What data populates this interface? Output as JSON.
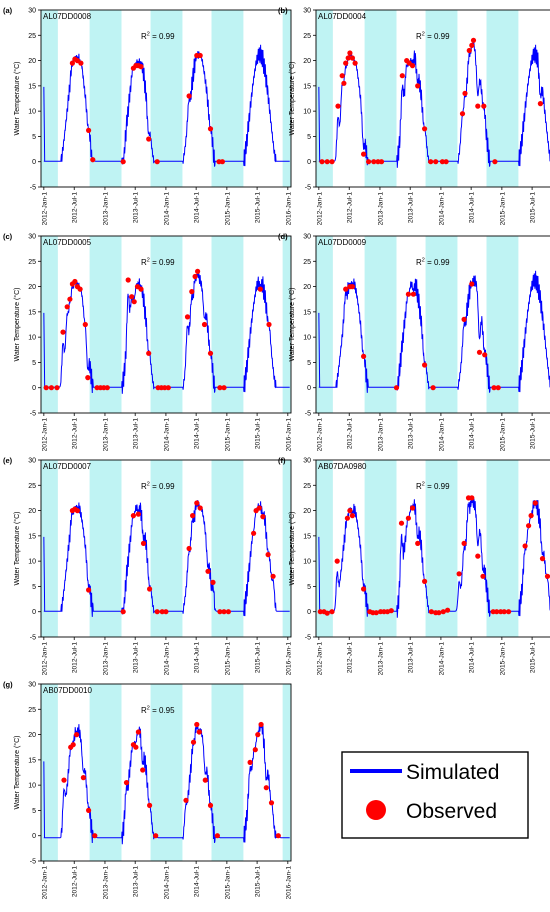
{
  "figure": {
    "ylabel": "Water Temperature (°C)",
    "r2_prefix": "R",
    "r2_sup": "2",
    "legend": {
      "simulated": "Simulated",
      "observed": "Observed"
    },
    "colors": {
      "simulated": "#0000ff",
      "observed": "#ff0000",
      "shade": "#bff3f3"
    }
  },
  "chart_data": [
    {
      "type": "line",
      "panel": "(a)",
      "station": "AL07DD0008",
      "r2": "= 0.99",
      "ylim": [
        -5,
        30
      ],
      "yticks": [
        -5,
        0,
        5,
        10,
        15,
        20,
        25,
        30
      ],
      "xlim": [
        "2011-12-15",
        "2016-01-20"
      ],
      "xticks": [
        "2012-Jan-1",
        "2012-Jul-1",
        "2013-Jan-1",
        "2013-Jul-1",
        "2014-Jan-1",
        "2014-Jul-1",
        "2015-Jan-1",
        "2015-Jul-1",
        "2016-Jan-1"
      ],
      "observed": [
        [
          "2012-06-20",
          19.5
        ],
        [
          "2012-07-05",
          20.3
        ],
        [
          "2012-07-20",
          20
        ],
        [
          "2012-08-10",
          19.5
        ],
        [
          "2012-09-25",
          6.2
        ],
        [
          "2012-10-20",
          0.4
        ],
        [
          "2013-04-20",
          0
        ],
        [
          "2013-06-20",
          18.5
        ],
        [
          "2013-07-05",
          19
        ],
        [
          "2013-07-20",
          19
        ],
        [
          "2013-08-05",
          18.8
        ],
        [
          "2013-09-20",
          4.5
        ],
        [
          "2013-11-10",
          0
        ],
        [
          "2014-05-20",
          13
        ],
        [
          "2014-07-05",
          21
        ],
        [
          "2014-07-25",
          21
        ],
        [
          "2014-09-25",
          6.5
        ],
        [
          "2014-11-15",
          0
        ],
        [
          "2014-12-05",
          0
        ]
      ]
    },
    {
      "type": "line",
      "panel": "(b)",
      "station": "AL07DD0004",
      "r2": "= 0.99",
      "ylim": [
        -5,
        30
      ],
      "yticks": [
        -5,
        0,
        5,
        10,
        15,
        20,
        25,
        30
      ],
      "xlim": [
        "2011-12-15",
        "2016-01-20"
      ],
      "xticks": [
        "2012-Jan-1",
        "2012-Jul-1",
        "2013-Jan-1",
        "2013-Jul-1",
        "2014-Jan-1",
        "2014-Jul-1",
        "2015-Jan-1",
        "2015-Jul-1",
        "2016-Jan-1"
      ],
      "observed": [
        [
          "2012-01-20",
          0
        ],
        [
          "2012-02-20",
          0
        ],
        [
          "2012-03-20",
          0
        ],
        [
          "2012-04-25",
          11
        ],
        [
          "2012-05-20",
          17
        ],
        [
          "2012-05-30",
          15.5
        ],
        [
          "2012-06-10",
          19.5
        ],
        [
          "2012-06-25",
          20.5
        ],
        [
          "2012-07-05",
          21.5
        ],
        [
          "2012-07-20",
          20.5
        ],
        [
          "2012-08-05",
          19.5
        ],
        [
          "2012-09-25",
          1.5
        ],
        [
          "2012-10-25",
          0
        ],
        [
          "2012-11-25",
          0
        ],
        [
          "2012-12-20",
          0
        ],
        [
          "2013-01-10",
          0
        ],
        [
          "2013-05-15",
          17
        ],
        [
          "2013-06-10",
          20
        ],
        [
          "2013-06-25",
          19.5
        ],
        [
          "2013-07-15",
          19
        ],
        [
          "2013-08-15",
          15
        ],
        [
          "2013-09-25",
          6.5
        ],
        [
          "2013-11-01",
          0
        ],
        [
          "2013-12-01",
          0
        ],
        [
          "2014-01-10",
          0
        ],
        [
          "2014-02-01",
          0
        ],
        [
          "2014-05-10",
          9.5
        ],
        [
          "2014-05-25",
          13.5
        ],
        [
          "2014-06-20",
          22
        ],
        [
          "2014-07-05",
          23
        ],
        [
          "2014-07-15",
          24
        ],
        [
          "2014-08-10",
          11
        ],
        [
          "2014-09-15",
          11
        ],
        [
          "2014-11-20",
          0
        ],
        [
          "2015-08-20",
          11.5
        ]
      ]
    },
    {
      "type": "line",
      "panel": "(c)",
      "station": "AL07DD0005",
      "r2": "= 0.99",
      "ylim": [
        -5,
        30
      ],
      "yticks": [
        -5,
        0,
        5,
        10,
        15,
        20,
        25,
        30
      ],
      "xlim": [
        "2011-12-15",
        "2016-01-20"
      ],
      "xticks": [
        "2012-Jan-1",
        "2012-Jul-1",
        "2013-Jan-1",
        "2013-Jul-1",
        "2014-Jan-1",
        "2014-Jul-1",
        "2015-Jan-1",
        "2015-Jul-1",
        "2016-Jan-1"
      ],
      "observed": [
        [
          "2012-01-15",
          0
        ],
        [
          "2012-02-15",
          0
        ],
        [
          "2012-03-20",
          0
        ],
        [
          "2012-04-25",
          11
        ],
        [
          "2012-05-20",
          16
        ],
        [
          "2012-06-05",
          17.5
        ],
        [
          "2012-06-20",
          20.5
        ],
        [
          "2012-07-05",
          21
        ],
        [
          "2012-07-20",
          20
        ],
        [
          "2012-08-05",
          19.5
        ],
        [
          "2012-09-05",
          12.5
        ],
        [
          "2012-09-20",
          2
        ],
        [
          "2012-11-15",
          0
        ],
        [
          "2012-12-05",
          0
        ],
        [
          "2012-12-25",
          0
        ],
        [
          "2013-01-15",
          0
        ],
        [
          "2013-05-20",
          21.3
        ],
        [
          "2013-06-10",
          18
        ],
        [
          "2013-06-25",
          17
        ],
        [
          "2013-07-15",
          20
        ],
        [
          "2013-08-05",
          19.5
        ],
        [
          "2013-09-20",
          6.8
        ],
        [
          "2013-11-15",
          0
        ],
        [
          "2013-12-05",
          0
        ],
        [
          "2013-12-25",
          0
        ],
        [
          "2014-01-15",
          0
        ],
        [
          "2014-05-10",
          14
        ],
        [
          "2014-06-05",
          19
        ],
        [
          "2014-06-25",
          22
        ],
        [
          "2014-07-10",
          23
        ],
        [
          "2014-08-20",
          12.5
        ],
        [
          "2014-09-25",
          6.8
        ],
        [
          "2014-11-20",
          0
        ],
        [
          "2014-12-15",
          0
        ],
        [
          "2015-07-20",
          19.5
        ],
        [
          "2015-09-10",
          12.5
        ]
      ]
    },
    {
      "type": "line",
      "panel": "(d)",
      "station": "AL07DD0009",
      "r2": "= 0.99",
      "ylim": [
        -5,
        30
      ],
      "yticks": [
        -5,
        0,
        5,
        10,
        15,
        20,
        25,
        30
      ],
      "xlim": [
        "2011-12-15",
        "2016-01-20"
      ],
      "xticks": [
        "2012-Jan-1",
        "2012-Jul-1",
        "2013-Jan-1",
        "2013-Jul-1",
        "2014-Jan-1",
        "2014-Jul-1",
        "2015-Jan-1",
        "2015-Jul-1",
        "2016-Jan-1"
      ],
      "observed": [
        [
          "2012-06-10",
          19.5
        ],
        [
          "2012-07-05",
          20
        ],
        [
          "2012-07-20",
          20
        ],
        [
          "2012-09-25",
          6.2
        ],
        [
          "2013-04-10",
          0
        ],
        [
          "2013-06-20",
          18.5
        ],
        [
          "2013-07-20",
          18.5
        ],
        [
          "2013-09-25",
          4.5
        ],
        [
          "2013-11-15",
          0
        ],
        [
          "2014-05-20",
          13.5
        ],
        [
          "2014-07-05",
          20.5
        ],
        [
          "2014-08-20",
          7
        ],
        [
          "2014-09-20",
          6.5
        ],
        [
          "2014-11-15",
          0
        ],
        [
          "2014-12-10",
          0
        ]
      ]
    },
    {
      "type": "line",
      "panel": "(e)",
      "station": "AL07DD0007",
      "r2": "= 0.99",
      "ylim": [
        -5,
        30
      ],
      "yticks": [
        -5,
        0,
        5,
        10,
        15,
        20,
        25,
        30
      ],
      "xlim": [
        "2011-12-15",
        "2016-01-20"
      ],
      "xticks": [
        "2012-Jan-1",
        "2012-Jul-1",
        "2013-Jan-1",
        "2013-Jul-1",
        "2014-Jan-1",
        "2014-Jul-1",
        "2015-Jan-1",
        "2015-Jul-1",
        "2016-Jan-1"
      ],
      "observed": [
        [
          "2012-06-20",
          20
        ],
        [
          "2012-07-05",
          20.3
        ],
        [
          "2012-07-20",
          20
        ],
        [
          "2012-09-25",
          4.3
        ],
        [
          "2013-04-20",
          0
        ],
        [
          "2013-06-20",
          19
        ],
        [
          "2013-07-20",
          19.3
        ],
        [
          "2013-08-20",
          13.5
        ],
        [
          "2013-09-25",
          4.5
        ],
        [
          "2013-11-10",
          0
        ],
        [
          "2013-12-10",
          0
        ],
        [
          "2014-01-01",
          0
        ],
        [
          "2014-05-20",
          12.5
        ],
        [
          "2014-06-10",
          19
        ],
        [
          "2014-07-05",
          21.5
        ],
        [
          "2014-07-25",
          20.5
        ],
        [
          "2014-09-10",
          8
        ],
        [
          "2014-10-10",
          5.8
        ],
        [
          "2014-11-20",
          0
        ],
        [
          "2014-12-15",
          0
        ],
        [
          "2015-01-10",
          0
        ],
        [
          "2015-06-10",
          15.5
        ],
        [
          "2015-06-25",
          20
        ],
        [
          "2015-07-15",
          20.5
        ],
        [
          "2015-08-05",
          18.8
        ],
        [
          "2015-09-05",
          11.3
        ],
        [
          "2015-10-05",
          7
        ]
      ]
    },
    {
      "type": "line",
      "panel": "(f)",
      "station": "AB07DA0980",
      "r2": "= 0.99",
      "ylim": [
        -5,
        30
      ],
      "yticks": [
        -5,
        0,
        5,
        10,
        15,
        20,
        25,
        30
      ],
      "xlim": [
        "2011-12-15",
        "2016-01-20"
      ],
      "xticks": [
        "2012-Jan-1",
        "2012-Jul-1",
        "2013-Jan-1",
        "2013-Jul-1",
        "2014-Jan-1",
        "2014-Jul-1",
        "2015-Jan-1",
        "2015-Jul-1",
        "2016-Jan-1"
      ],
      "observed": [
        [
          "2012-01-10",
          0
        ],
        [
          "2012-02-01",
          0
        ],
        [
          "2012-02-20",
          -0.3
        ],
        [
          "2012-03-20",
          0
        ],
        [
          "2012-04-20",
          10
        ],
        [
          "2012-06-20",
          18.5
        ],
        [
          "2012-07-05",
          20
        ],
        [
          "2012-07-20",
          19
        ],
        [
          "2012-09-25",
          4.5
        ],
        [
          "2012-11-01",
          0
        ],
        [
          "2012-11-20",
          -0.2
        ],
        [
          "2012-12-10",
          -0.2
        ],
        [
          "2013-01-05",
          0
        ],
        [
          "2013-01-25",
          0
        ],
        [
          "2013-02-15",
          0
        ],
        [
          "2013-03-10",
          0.2
        ],
        [
          "2013-05-10",
          17.5
        ],
        [
          "2013-06-20",
          18.5
        ],
        [
          "2013-07-15",
          20.5
        ],
        [
          "2013-08-15",
          13.5
        ],
        [
          "2013-09-25",
          6
        ],
        [
          "2013-11-05",
          0
        ],
        [
          "2013-12-01",
          -0.2
        ],
        [
          "2013-12-20",
          -0.2
        ],
        [
          "2014-01-15",
          0
        ],
        [
          "2014-02-10",
          0.3
        ],
        [
          "2014-04-20",
          7.5
        ],
        [
          "2014-05-20",
          13.5
        ],
        [
          "2014-06-15",
          22.5
        ],
        [
          "2014-07-05",
          22.5
        ],
        [
          "2014-08-10",
          11
        ],
        [
          "2014-09-10",
          7
        ],
        [
          "2014-11-10",
          0
        ],
        [
          "2014-12-01",
          0
        ],
        [
          "2014-12-25",
          0
        ],
        [
          "2015-01-15",
          0
        ],
        [
          "2015-02-10",
          0
        ],
        [
          "2015-05-20",
          13
        ],
        [
          "2015-06-10",
          17
        ],
        [
          "2015-06-25",
          19
        ],
        [
          "2015-07-20",
          21.5
        ],
        [
          "2015-09-01",
          10.5
        ],
        [
          "2015-10-01",
          7
        ],
        [
          "2015-11-10",
          0
        ],
        [
          "2015-12-01",
          -0.3
        ]
      ]
    },
    {
      "type": "line",
      "panel": "(g)",
      "station": "AB07DD0010",
      "r2": "= 0.95",
      "ylim": [
        -5,
        30
      ],
      "yticks": [
        -5,
        0,
        5,
        10,
        15,
        20,
        25,
        30
      ],
      "xlim": [
        "2011-12-15",
        "2016-01-20"
      ],
      "xticks": [
        "2012-Jan-1",
        "2012-Jul-1",
        "2013-Jan-1",
        "2013-Jul-1",
        "2014-Jan-1",
        "2014-Jul-1",
        "2015-Jan-1",
        "2015-Jul-1",
        "2016-Jan-1"
      ],
      "observed": [
        [
          "2012-05-01",
          11
        ],
        [
          "2012-06-10",
          17.5
        ],
        [
          "2012-06-25",
          18
        ],
        [
          "2012-07-15",
          20
        ],
        [
          "2012-08-25",
          11.5
        ],
        [
          "2012-09-25",
          5
        ],
        [
          "2012-11-01",
          0
        ],
        [
          "2013-05-10",
          10.5
        ],
        [
          "2013-06-20",
          18
        ],
        [
          "2013-07-05",
          17.5
        ],
        [
          "2013-07-20",
          20.5
        ],
        [
          "2013-08-15",
          13
        ],
        [
          "2013-09-25",
          6
        ],
        [
          "2013-11-01",
          0
        ],
        [
          "2014-05-01",
          7
        ],
        [
          "2014-06-15",
          18.5
        ],
        [
          "2014-07-05",
          22
        ],
        [
          "2014-07-20",
          20.5
        ],
        [
          "2014-08-25",
          11
        ],
        [
          "2014-09-25",
          6
        ],
        [
          "2014-11-05",
          0
        ],
        [
          "2015-05-20",
          14.5
        ],
        [
          "2015-06-20",
          17
        ],
        [
          "2015-07-05",
          20
        ],
        [
          "2015-07-25",
          22
        ],
        [
          "2015-08-25",
          9.5
        ],
        [
          "2015-09-25",
          6.5
        ],
        [
          "2015-11-05",
          0
        ]
      ]
    }
  ]
}
